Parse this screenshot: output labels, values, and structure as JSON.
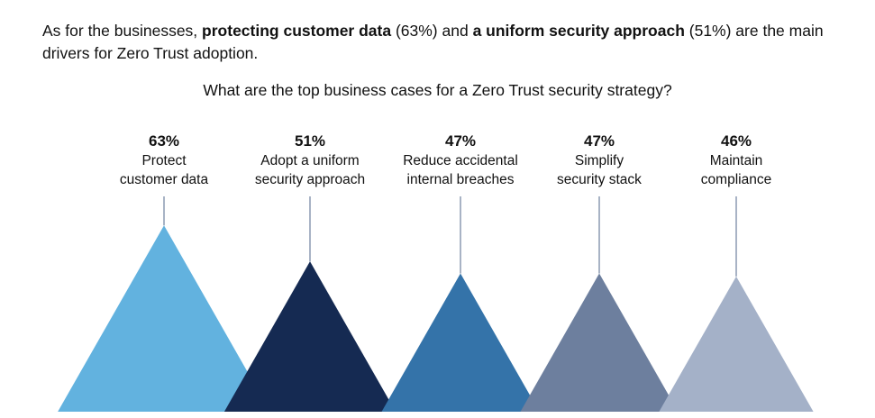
{
  "intro": {
    "t1": "As for the businesses, ",
    "b1": "protecting customer data",
    "t2": " (63%) and ",
    "b2": "a uniform security approach",
    "t3": " (51%) are the main drivers for Zero Trust adoption."
  },
  "chart_data": {
    "type": "bar",
    "title": "What are the top business cases for a Zero Trust security strategy?",
    "categories": [
      "Protect customer data",
      "Adopt a uniform security approach",
      "Reduce accidental internal breaches",
      "Simplify security stack",
      "Maintain compliance"
    ],
    "label_lines": [
      [
        "Protect",
        "customer data"
      ],
      [
        "Adopt a uniform",
        "security approach"
      ],
      [
        "Reduce accidental",
        "internal breaches"
      ],
      [
        "Simplify",
        "security stack"
      ],
      [
        "Maintain",
        "compliance"
      ]
    ],
    "values": [
      63,
      51,
      47,
      47,
      46
    ],
    "value_labels": [
      "63%",
      "51%",
      "47%",
      "47%",
      "46%"
    ],
    "colors": [
      "#62b2df",
      "#152a52",
      "#3473a9",
      "#6d7f9e",
      "#a4b1c8"
    ],
    "line_color": "#7a8aa6"
  }
}
